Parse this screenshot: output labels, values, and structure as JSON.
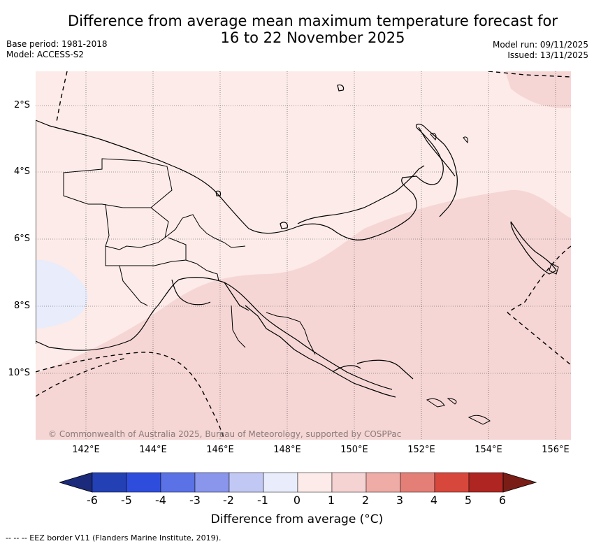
{
  "title_line1": "Difference from average mean maximum temperature forecast for",
  "title_line2": "16 to 22 November 2025",
  "base_period": "Base period: 1981-2018",
  "model": "Model: ACCESS-S2",
  "model_run": "Model run: 09/11/2025",
  "issued": "Issued: 13/11/2025",
  "x_ticks": [
    "142°E",
    "144°E",
    "146°E",
    "148°E",
    "150°E",
    "152°E",
    "154°E",
    "156°E"
  ],
  "y_ticks": [
    "2°S",
    "4°S",
    "6°S",
    "8°S",
    "10°S"
  ],
  "colorbar": {
    "labels": [
      "-6",
      "-5",
      "-4",
      "-3",
      "-2",
      "-1",
      "0",
      "1",
      "2",
      "3",
      "4",
      "5",
      "6"
    ],
    "colors": [
      "#1b2a7a",
      "#2340b4",
      "#2f4ddd",
      "#5a72e6",
      "#8996ec",
      "#c2c8f4",
      "#e8ecfb",
      "#fcebe8",
      "#f5d3d2",
      "#efaba6",
      "#e47f78",
      "#d8473c",
      "#ae2522",
      "#7a1d16"
    ],
    "title": "Difference from average (°C)"
  },
  "copyright": "© Commonwealth of Australia 2025, Bureau of Meteorology, supported by COSPPac",
  "footnote": "--  --  -- EEZ border V11 (Flanders Marine Institute, 2019).",
  "legend_category_colors": {
    "slightly_above": "#fcebe8",
    "above": "#f5d6d5",
    "slightly_below": "#e8ecfb"
  }
}
